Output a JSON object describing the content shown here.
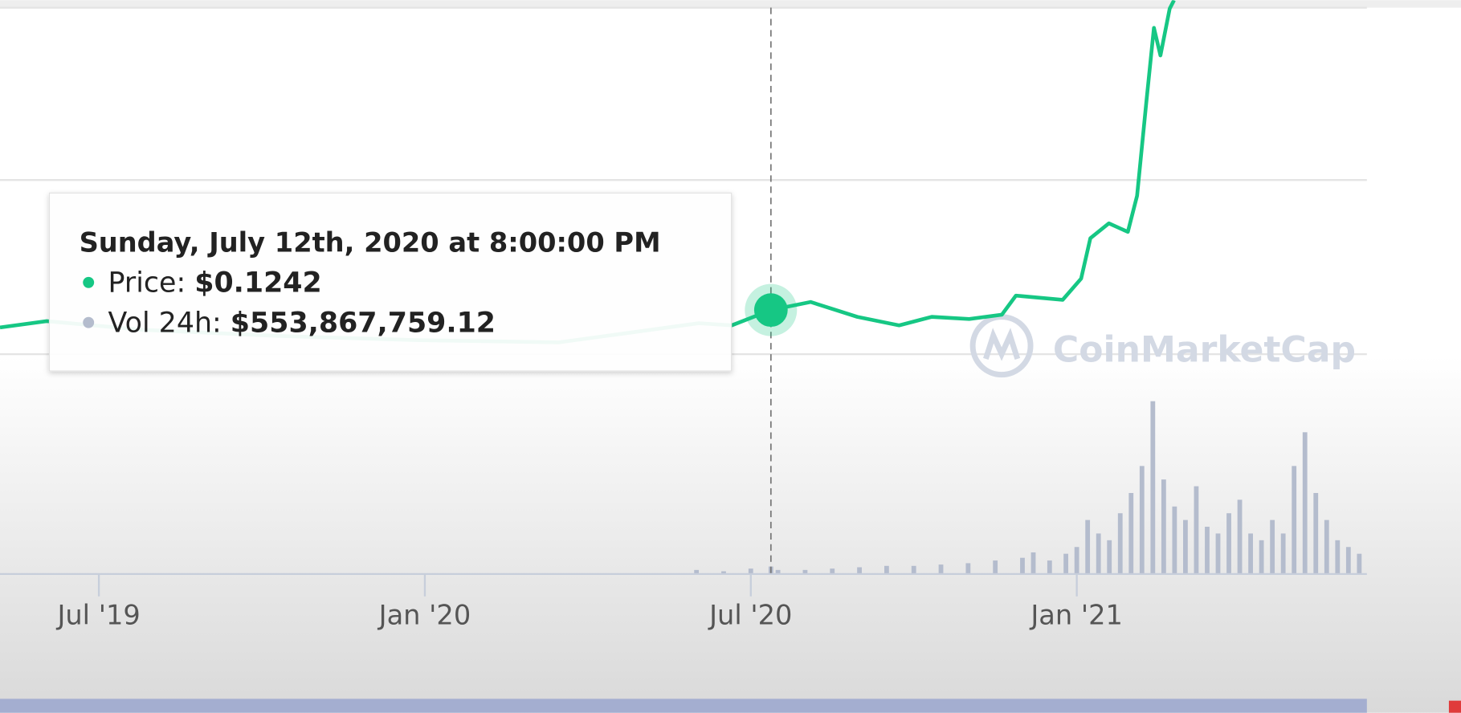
{
  "chart_data": {
    "type": "line",
    "watermark": "CoinMarketCap",
    "xlim": [
      4.18,
      29.34
    ],
    "xticks": [
      {
        "value": 6,
        "label": "Jul '19"
      },
      {
        "value": 12,
        "label": "Jan '20"
      },
      {
        "value": 18,
        "label": "Jul '20"
      },
      {
        "value": 24,
        "label": "Jan '21"
      }
    ],
    "ylim": [
      0,
      0.27
    ],
    "y2lim": [
      0,
      42500000000
    ],
    "series": [
      {
        "name": "Price",
        "color": "#16c784",
        "x": [
          4.18,
          5.04,
          6.75,
          9.33,
          11.9,
          14.47,
          17.04,
          17.65,
          18.37,
          19.1,
          19.96,
          20.73,
          21.33,
          22.02,
          22.62,
          22.88,
          23.74,
          24.08,
          24.25,
          24.59,
          24.94,
          25.11,
          25.28,
          25.42,
          25.54,
          25.71,
          25.79
        ],
        "values": [
          0.116,
          0.119,
          0.115,
          0.112,
          0.11,
          0.109,
          0.118,
          0.117,
          0.1242,
          0.128,
          0.121,
          0.117,
          0.121,
          0.12,
          0.122,
          0.131,
          0.129,
          0.139,
          0.158,
          0.165,
          0.161,
          0.178,
          0.222,
          0.257,
          0.244,
          0.266,
          0.27
        ]
      },
      {
        "name": "Vol 24h",
        "color": "#b4bccd",
        "axis": "y2",
        "x": [
          17.0,
          17.5,
          18.0,
          18.37,
          18.5,
          19,
          19.5,
          20,
          20.5,
          21,
          21.5,
          22,
          22.5,
          23,
          23.2,
          23.5,
          23.8,
          24.0,
          24.2,
          24.4,
          24.6,
          24.8,
          25.0,
          25.2,
          25.4,
          25.6,
          25.8,
          26.0,
          26.2,
          26.4,
          26.6,
          26.8,
          27.0,
          27.2,
          27.4,
          27.6,
          27.8,
          28.0,
          28.2,
          28.4,
          28.6,
          28.8,
          29.0,
          29.2
        ],
        "values": [
          300000000,
          200000000,
          400000000,
          553867759.12,
          300000000,
          300000000,
          400000000,
          500000000,
          600000000,
          600000000,
          700000000,
          800000000,
          1000000000,
          1200000000,
          1600000000,
          1000000000,
          1500000000,
          2000000000,
          4000000000,
          3000000000,
          2500000000,
          4500000000,
          6000000000,
          8000000000,
          12800000000,
          7000000000,
          5000000000,
          4000000000,
          6500000000,
          3500000000,
          3000000000,
          4500000000,
          5500000000,
          3000000000,
          2500000000,
          4000000000,
          3000000000,
          8000000000,
          10500000000,
          6000000000,
          4000000000,
          2500000000,
          2000000000,
          1500000000
        ]
      }
    ],
    "tooltip": {
      "title": "Sunday, July 12th, 2020 at 8:00:00 PM",
      "price_label": "Price:",
      "price": "$0.1242",
      "volume_label": "Vol 24h:",
      "volume": "$553,867,759.12"
    }
  }
}
